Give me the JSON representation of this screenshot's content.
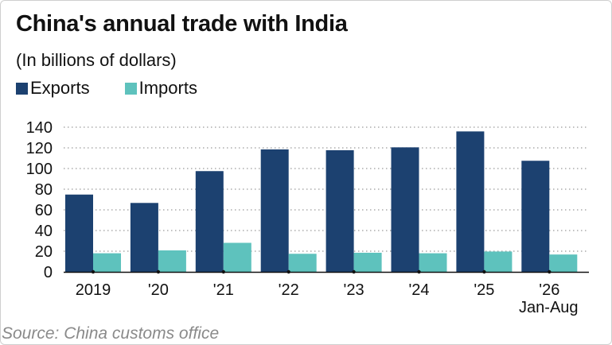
{
  "title": "China's annual trade with India",
  "subtitle": "(In billions of dollars)",
  "source": "Source: China customs office",
  "colors": {
    "exports": "#1c4170",
    "imports": "#5ec2bd",
    "grid": "#9a9a9a"
  },
  "chart_data": {
    "type": "bar",
    "title": "China's annual trade with India",
    "subtitle": "(In billions of dollars)",
    "categories": [
      "2019",
      "'20",
      "'21",
      "'22",
      "'23",
      "'24",
      "'25",
      "'26"
    ],
    "category_sublabels": [
      "",
      "",
      "",
      "",
      "",
      "",
      "",
      "Jan-Aug"
    ],
    "series": [
      {
        "name": "Exports",
        "values": [
          74.8,
          66.7,
          97.5,
          118.5,
          117.7,
          120.5,
          135.9,
          107.5
        ]
      },
      {
        "name": "Imports",
        "values": [
          18.0,
          20.8,
          28.1,
          17.5,
          18.5,
          18.0,
          19.7,
          16.8
        ]
      }
    ],
    "yticks": [
      0,
      20,
      40,
      60,
      80,
      100,
      120,
      140
    ],
    "ylim": [
      0,
      140
    ],
    "grid": true,
    "legend": "top-left"
  }
}
